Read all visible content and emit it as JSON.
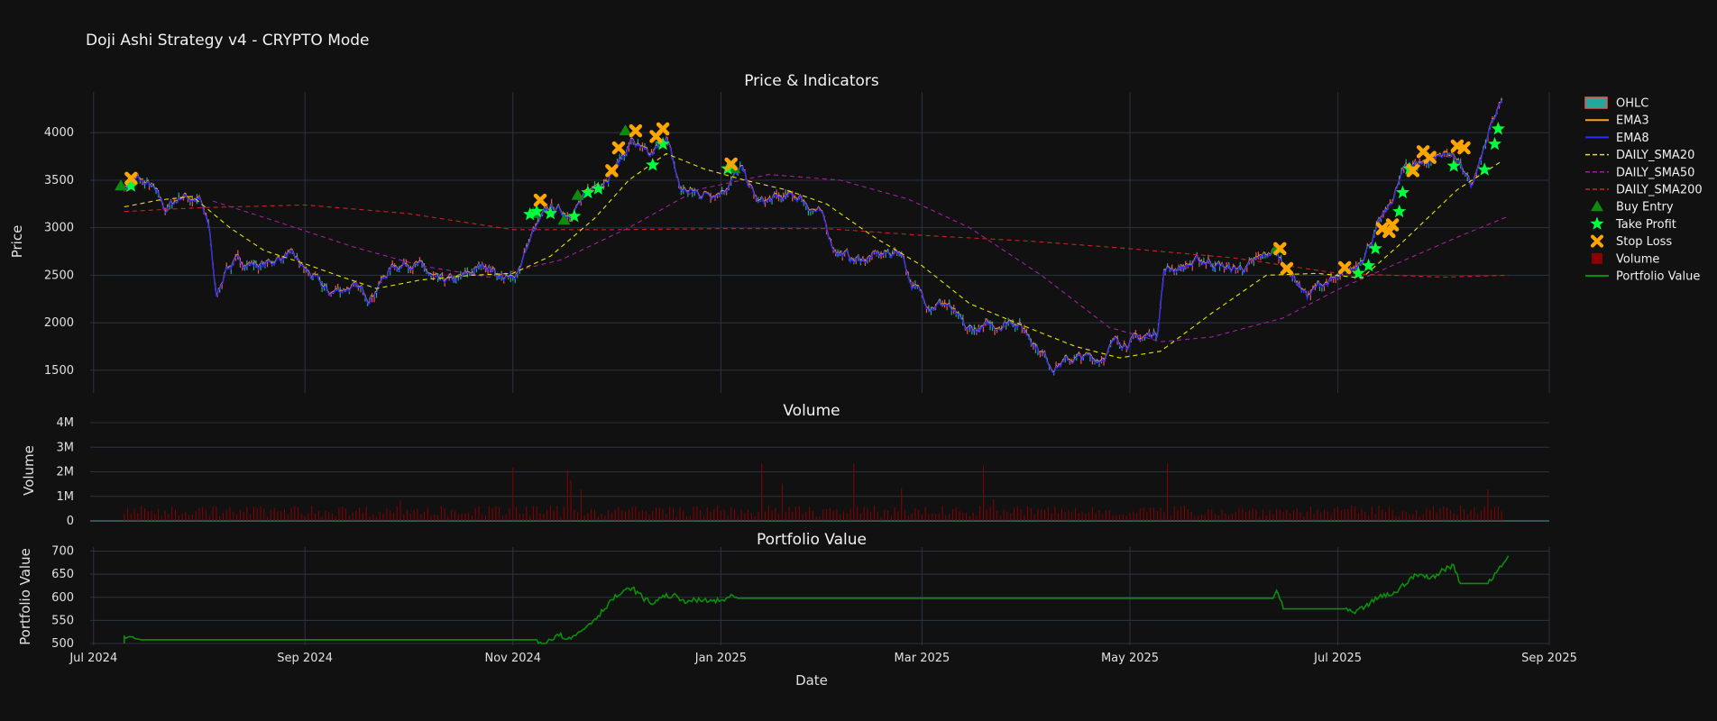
{
  "chart_data": {
    "type": "line",
    "title": "Doji Ashi Strategy v4 - CRYPTO Mode",
    "xlabel": "Date",
    "x_range": [
      "2024-06-30",
      "2025-09-01"
    ],
    "x_ticks": [
      {
        "date": "2024-07-01",
        "label": "Jul 2024"
      },
      {
        "date": "2024-09-01",
        "label": "Sep 2024"
      },
      {
        "date": "2024-11-01",
        "label": "Nov 2024"
      },
      {
        "date": "2025-01-01",
        "label": "Jan 2025"
      },
      {
        "date": "2025-03-01",
        "label": "Mar 2025"
      },
      {
        "date": "2025-05-01",
        "label": "May 2025"
      },
      {
        "date": "2025-07-01",
        "label": "Jul 2025"
      },
      {
        "date": "2025-09-01",
        "label": "Sep 2025"
      }
    ],
    "grid": true,
    "legend_position": "right",
    "colors": {
      "up": "#26a69a",
      "down": "#ef5350",
      "ema3": "#ff9f1c",
      "ema8": "#2b2bff",
      "sma20": "#e6e600",
      "sma50": "#a020a0",
      "sma200": "#cc2222",
      "buy": "#0e8a0e",
      "tp": "#00ff3c",
      "sl": "#ffa500",
      "volume": "#8b0000",
      "portfolio": "#0a8f0a",
      "grid": "#2c3340",
      "background": "#111111"
    },
    "panels": [
      {
        "title": "Price & Indicators",
        "ylabel": "Price",
        "ylim": [
          1280,
          4410
        ],
        "yticks": [
          1500,
          2000,
          2500,
          3000,
          3500,
          4000
        ],
        "price_path": [
          [
            "2024-07-10",
            3420
          ],
          [
            "2024-07-14",
            3500
          ],
          [
            "2024-07-18",
            3420
          ],
          [
            "2024-07-22",
            3180
          ],
          [
            "2024-07-27",
            3340
          ],
          [
            "2024-08-01",
            3300
          ],
          [
            "2024-08-04",
            2950
          ],
          [
            "2024-08-06",
            2250
          ],
          [
            "2024-08-09",
            2600
          ],
          [
            "2024-08-14",
            2640
          ],
          [
            "2024-08-20",
            2600
          ],
          [
            "2024-08-27",
            2720
          ],
          [
            "2024-09-03",
            2480
          ],
          [
            "2024-09-08",
            2300
          ],
          [
            "2024-09-14",
            2380
          ],
          [
            "2024-09-20",
            2280
          ],
          [
            "2024-09-27",
            2600
          ],
          [
            "2024-10-03",
            2650
          ],
          [
            "2024-10-10",
            2400
          ],
          [
            "2024-10-17",
            2450
          ],
          [
            "2024-10-24",
            2620
          ],
          [
            "2024-10-29",
            2480
          ],
          [
            "2024-11-01",
            2430
          ],
          [
            "2024-11-07",
            2950
          ],
          [
            "2024-11-12",
            3200
          ],
          [
            "2024-11-17",
            3150
          ],
          [
            "2024-11-22",
            3300
          ],
          [
            "2024-11-27",
            3500
          ],
          [
            "2024-12-02",
            3680
          ],
          [
            "2024-12-06",
            3920
          ],
          [
            "2024-12-11",
            3700
          ],
          [
            "2024-12-16",
            3950
          ],
          [
            "2024-12-20",
            3400
          ],
          [
            "2024-12-26",
            3350
          ],
          [
            "2025-01-01",
            3400
          ],
          [
            "2025-01-07",
            3600
          ],
          [
            "2025-01-12",
            3250
          ],
          [
            "2025-01-18",
            3300
          ],
          [
            "2025-01-24",
            3320
          ],
          [
            "2025-01-30",
            3150
          ],
          [
            "2025-02-03",
            2800
          ],
          [
            "2025-02-09",
            2650
          ],
          [
            "2025-02-16",
            2700
          ],
          [
            "2025-02-23",
            2750
          ],
          [
            "2025-02-26",
            2400
          ],
          [
            "2025-03-03",
            2200
          ],
          [
            "2025-03-08",
            2200
          ],
          [
            "2025-03-14",
            1900
          ],
          [
            "2025-03-22",
            1960
          ],
          [
            "2025-03-28",
            2040
          ],
          [
            "2025-04-02",
            1850
          ],
          [
            "2025-04-08",
            1550
          ],
          [
            "2025-04-15",
            1620
          ],
          [
            "2025-04-22",
            1620
          ],
          [
            "2025-04-27",
            1800
          ],
          [
            "2025-05-04",
            1820
          ],
          [
            "2025-05-09",
            1900
          ],
          [
            "2025-05-11",
            2550
          ],
          [
            "2025-05-17",
            2600
          ],
          [
            "2025-05-24",
            2650
          ],
          [
            "2025-05-31",
            2550
          ],
          [
            "2025-06-06",
            2600
          ],
          [
            "2025-06-12",
            2750
          ],
          [
            "2025-06-17",
            2550
          ],
          [
            "2025-06-22",
            2280
          ],
          [
            "2025-06-27",
            2420
          ],
          [
            "2025-07-02",
            2450
          ],
          [
            "2025-07-06",
            2560
          ],
          [
            "2025-07-11",
            2900
          ],
          [
            "2025-07-16",
            3200
          ],
          [
            "2025-07-21",
            3650
          ],
          [
            "2025-07-27",
            3700
          ],
          [
            "2025-08-01",
            3780
          ],
          [
            "2025-08-05",
            3750
          ],
          [
            "2025-08-09",
            3400
          ],
          [
            "2025-08-12",
            3700
          ],
          [
            "2025-08-15",
            4050
          ],
          [
            "2025-08-18",
            4300
          ]
        ],
        "sma20_path": [
          [
            "2024-07-10",
            3220
          ],
          [
            "2024-07-20",
            3290
          ],
          [
            "2024-07-30",
            3330
          ],
          [
            "2024-08-10",
            3000
          ],
          [
            "2024-08-20",
            2760
          ],
          [
            "2024-09-01",
            2620
          ],
          [
            "2024-09-12",
            2480
          ],
          [
            "2024-09-22",
            2360
          ],
          [
            "2024-10-05",
            2450
          ],
          [
            "2024-10-20",
            2500
          ],
          [
            "2024-11-01",
            2520
          ],
          [
            "2024-11-12",
            2700
          ],
          [
            "2024-11-25",
            3100
          ],
          [
            "2024-12-05",
            3500
          ],
          [
            "2024-12-16",
            3780
          ],
          [
            "2024-12-27",
            3620
          ],
          [
            "2025-01-08",
            3500
          ],
          [
            "2025-01-20",
            3400
          ],
          [
            "2025-02-01",
            3250
          ],
          [
            "2025-02-15",
            2900
          ],
          [
            "2025-03-01",
            2600
          ],
          [
            "2025-03-15",
            2200
          ],
          [
            "2025-04-01",
            1950
          ],
          [
            "2025-04-15",
            1750
          ],
          [
            "2025-04-28",
            1630
          ],
          [
            "2025-05-10",
            1700
          ],
          [
            "2025-05-25",
            2100
          ],
          [
            "2025-06-10",
            2500
          ],
          [
            "2025-06-25",
            2520
          ],
          [
            "2025-07-08",
            2470
          ],
          [
            "2025-07-20",
            2850
          ],
          [
            "2025-08-05",
            3400
          ],
          [
            "2025-08-18",
            3700
          ]
        ],
        "sma50_path": [
          [
            "2024-08-05",
            3280
          ],
          [
            "2024-08-25",
            3050
          ],
          [
            "2024-09-15",
            2800
          ],
          [
            "2024-10-05",
            2600
          ],
          [
            "2024-10-25",
            2480
          ],
          [
            "2024-11-15",
            2660
          ],
          [
            "2024-12-05",
            3000
          ],
          [
            "2024-12-25",
            3400
          ],
          [
            "2025-01-15",
            3560
          ],
          [
            "2025-02-05",
            3500
          ],
          [
            "2025-02-25",
            3300
          ],
          [
            "2025-03-15",
            3000
          ],
          [
            "2025-04-05",
            2500
          ],
          [
            "2025-04-25",
            1950
          ],
          [
            "2025-05-10",
            1800
          ],
          [
            "2025-05-25",
            1850
          ],
          [
            "2025-06-15",
            2050
          ],
          [
            "2025-07-01",
            2350
          ],
          [
            "2025-07-20",
            2650
          ],
          [
            "2025-08-05",
            2900
          ],
          [
            "2025-08-20",
            3120
          ]
        ],
        "sma200_path": [
          [
            "2024-07-10",
            3170
          ],
          [
            "2024-08-01",
            3210
          ],
          [
            "2024-09-01",
            3240
          ],
          [
            "2024-10-01",
            3150
          ],
          [
            "2024-11-01",
            2980
          ],
          [
            "2024-12-01",
            2980
          ],
          [
            "2025-01-01",
            2990
          ],
          [
            "2025-02-01",
            2990
          ],
          [
            "2025-03-01",
            2920
          ],
          [
            "2025-04-01",
            2860
          ],
          [
            "2025-05-01",
            2780
          ],
          [
            "2025-06-01",
            2680
          ],
          [
            "2025-07-01",
            2520
          ],
          [
            "2025-08-01",
            2480
          ],
          [
            "2025-08-20",
            2500
          ]
        ],
        "buy_entries": [
          [
            "2024-07-09",
            3440
          ],
          [
            "2024-11-07",
            3150
          ],
          [
            "2024-11-16",
            3080
          ],
          [
            "2024-11-20",
            3340
          ],
          [
            "2024-12-04",
            4020
          ],
          [
            "2025-01-05",
            3620
          ],
          [
            "2025-06-13",
            2780
          ]
        ],
        "take_profits": [
          [
            "2024-07-12",
            3440
          ],
          [
            "2024-11-06",
            3140
          ],
          [
            "2024-11-08",
            3170
          ],
          [
            "2024-11-12",
            3150
          ],
          [
            "2024-11-19",
            3120
          ],
          [
            "2024-11-23",
            3370
          ],
          [
            "2024-11-26",
            3410
          ],
          [
            "2024-12-12",
            3660
          ],
          [
            "2024-12-15",
            3880
          ],
          [
            "2025-01-03",
            3620
          ],
          [
            "2025-07-07",
            2520
          ],
          [
            "2025-07-10",
            2600
          ],
          [
            "2025-07-12",
            2780
          ],
          [
            "2025-07-19",
            3170
          ],
          [
            "2025-07-20",
            3370
          ],
          [
            "2025-07-22",
            3620
          ],
          [
            "2025-08-04",
            3650
          ],
          [
            "2025-08-13",
            3610
          ],
          [
            "2025-08-16",
            3880
          ],
          [
            "2025-08-17",
            4040
          ]
        ],
        "stop_losses": [
          [
            "2024-07-12",
            3520
          ],
          [
            "2024-11-09",
            3290
          ],
          [
            "2024-11-30",
            3600
          ],
          [
            "2024-12-02",
            3840
          ],
          [
            "2024-12-07",
            4020
          ],
          [
            "2024-12-13",
            3960
          ],
          [
            "2024-12-15",
            4040
          ],
          [
            "2025-01-04",
            3670
          ],
          [
            "2025-06-14",
            2780
          ],
          [
            "2025-06-16",
            2570
          ],
          [
            "2025-07-03",
            2580
          ],
          [
            "2025-07-14",
            2990
          ],
          [
            "2025-07-16",
            2960
          ],
          [
            "2025-07-17",
            3030
          ],
          [
            "2025-07-23",
            3600
          ],
          [
            "2025-07-26",
            3800
          ],
          [
            "2025-07-28",
            3740
          ],
          [
            "2025-08-05",
            3860
          ],
          [
            "2025-08-07",
            3840
          ]
        ]
      },
      {
        "title": "Volume",
        "ylabel": "Volume",
        "ylim": [
          0,
          4000000
        ],
        "yticks": [
          0,
          1000000,
          2000000,
          3000000,
          4000000
        ],
        "ytick_labels": [
          "0",
          "1M",
          "2M",
          "3M",
          "4M"
        ],
        "typical_volume": 350000
      },
      {
        "title": "Portfolio Value",
        "ylabel": "Portfolio Value",
        "ylim": [
          500,
          705
        ],
        "yticks": [
          500,
          550,
          600,
          650,
          700
        ],
        "path": [
          [
            "2024-07-10",
            500
          ],
          [
            "2024-07-10",
            515
          ],
          [
            "2024-07-14",
            510
          ],
          [
            "2024-07-15",
            508
          ],
          [
            "2024-11-08",
            508
          ],
          [
            "2024-11-10",
            500
          ],
          [
            "2024-11-14",
            520
          ],
          [
            "2024-11-18",
            510
          ],
          [
            "2024-11-23",
            540
          ],
          [
            "2024-11-26",
            560
          ],
          [
            "2024-11-30",
            595
          ],
          [
            "2024-12-03",
            610
          ],
          [
            "2024-12-06",
            620
          ],
          [
            "2024-12-09",
            600
          ],
          [
            "2024-12-12",
            585
          ],
          [
            "2024-12-14",
            600
          ],
          [
            "2024-12-18",
            605
          ],
          [
            "2024-12-20",
            593
          ],
          [
            "2025-01-02",
            592
          ],
          [
            "2025-01-04",
            606
          ],
          [
            "2025-01-06",
            598
          ],
          [
            "2025-06-12",
            598
          ],
          [
            "2025-06-13",
            615
          ],
          [
            "2025-06-15",
            575
          ],
          [
            "2025-07-03",
            575
          ],
          [
            "2025-07-06",
            565
          ],
          [
            "2025-07-09",
            580
          ],
          [
            "2025-07-13",
            600
          ],
          [
            "2025-07-18",
            610
          ],
          [
            "2025-07-22",
            640
          ],
          [
            "2025-07-25",
            650
          ],
          [
            "2025-07-28",
            640
          ],
          [
            "2025-08-01",
            660
          ],
          [
            "2025-08-04",
            670
          ],
          [
            "2025-08-06",
            630
          ],
          [
            "2025-08-14",
            630
          ],
          [
            "2025-08-17",
            660
          ],
          [
            "2025-08-20",
            690
          ]
        ]
      }
    ],
    "legend": [
      {
        "label": "OHLC",
        "kind": "candle"
      },
      {
        "label": "EMA3",
        "kind": "line",
        "color": "#ff9f1c"
      },
      {
        "label": "EMA8",
        "kind": "line",
        "color": "#2b2bff"
      },
      {
        "label": "DAILY_SMA20",
        "kind": "dash",
        "color": "#e6e600"
      },
      {
        "label": "DAILY_SMA50",
        "kind": "dash",
        "color": "#a020a0"
      },
      {
        "label": "DAILY_SMA200",
        "kind": "dash",
        "color": "#cc2222"
      },
      {
        "label": "Buy Entry",
        "kind": "triangle",
        "color": "#0e8a0e"
      },
      {
        "label": "Take Profit",
        "kind": "star",
        "color": "#00ff3c"
      },
      {
        "label": "Stop Loss",
        "kind": "x",
        "color": "#ffa500"
      },
      {
        "label": "Volume",
        "kind": "square",
        "color": "#8b0000"
      },
      {
        "label": "Portfolio Value",
        "kind": "line",
        "color": "#0a8f0a"
      }
    ]
  }
}
